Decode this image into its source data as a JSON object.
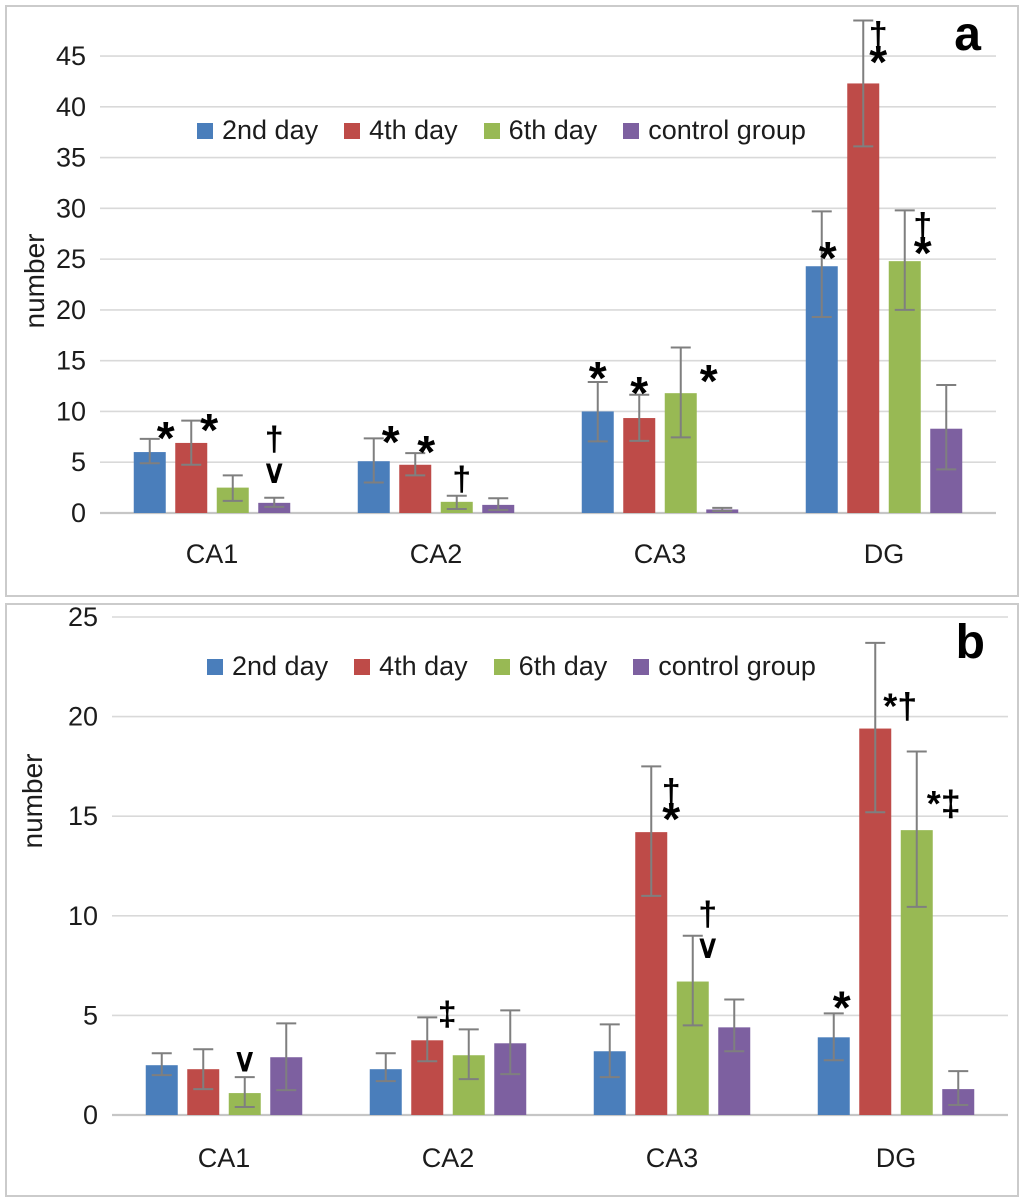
{
  "figure": {
    "background": "#ffffff",
    "border_color": "#cbcbcb",
    "gridline_color": "#d9d9d9",
    "axis_line_color": "#c6c6c6",
    "error_bar_color": "#7f7f7f",
    "text_color": "#1c1c1c"
  },
  "chart_data": [
    {
      "type": "bar",
      "panel_label": "a",
      "ylabel": "number",
      "xlabel": "",
      "categories": [
        "CA1",
        "CA2",
        "CA3",
        "DG"
      ],
      "y_ticks": [
        0,
        5,
        10,
        15,
        20,
        25,
        30,
        35,
        40,
        45
      ],
      "ylim": [
        0,
        49
      ],
      "grid": true,
      "legend_position": "top-inside",
      "series": [
        {
          "name": "2nd day",
          "color": "#4A7EBB",
          "values": [
            6.0,
            5.1,
            10.0,
            24.3
          ],
          "err_lo": [
            4.9,
            3.0,
            7.05,
            19.3
          ],
          "err_hi": [
            7.3,
            7.35,
            12.9,
            29.7
          ]
        },
        {
          "name": "4th day",
          "color": "#BE4B48",
          "values": [
            6.9,
            4.75,
            9.35,
            42.3
          ],
          "err_lo": [
            4.75,
            3.7,
            7.1,
            36.1
          ],
          "err_hi": [
            9.1,
            5.9,
            11.65,
            48.5
          ]
        },
        {
          "name": "6th day",
          "color": "#98B954",
          "values": [
            2.5,
            1.1,
            11.8,
            24.8
          ],
          "err_lo": [
            1.2,
            0.4,
            7.45,
            20.0
          ],
          "err_hi": [
            3.7,
            1.7,
            16.3,
            29.8
          ]
        },
        {
          "name": "control group",
          "color": "#7D60A0",
          "values": [
            1.0,
            0.8,
            0.35,
            8.3
          ],
          "err_lo": [
            0.6,
            0.3,
            0.2,
            4.3
          ],
          "err_hi": [
            1.5,
            1.45,
            0.5,
            12.6
          ]
        }
      ],
      "annotations": [
        {
          "group": 0,
          "bar": 0,
          "lines": [
            "*"
          ],
          "y": 7.0,
          "dx": 16
        },
        {
          "group": 0,
          "bar": 1,
          "lines": [
            "*"
          ],
          "y": 7.8,
          "dx": 18
        },
        {
          "group": 0,
          "bar": 3,
          "lines": [
            "†",
            "∨"
          ],
          "y": 3.0,
          "dx": 0
        },
        {
          "group": 1,
          "bar": 0,
          "lines": [
            "*"
          ],
          "y": 6.6,
          "dx": 17
        },
        {
          "group": 1,
          "bar": 1,
          "lines": [
            "*"
          ],
          "y": 5.6,
          "dx": 11
        },
        {
          "group": 1,
          "bar": 2,
          "lines": [
            "†"
          ],
          "y": 2.2,
          "dx": 5
        },
        {
          "group": 2,
          "bar": 0,
          "lines": [
            "*"
          ],
          "y": 12.9,
          "dx": 0
        },
        {
          "group": 2,
          "bar": 1,
          "lines": [
            "*"
          ],
          "y": 11.4,
          "dx": 0
        },
        {
          "group": 2,
          "bar": 2,
          "lines": [
            "*"
          ],
          "y": 12.6,
          "dx": 28
        },
        {
          "group": 3,
          "bar": 0,
          "lines": [
            "*"
          ],
          "y": 24.7,
          "dx": 6
        },
        {
          "group": 3,
          "bar": 1,
          "lines": [
            "†",
            "*"
          ],
          "y": 44.0,
          "dx": 15
        },
        {
          "group": 3,
          "bar": 2,
          "lines": [
            "†",
            "*"
          ],
          "y": 25.2,
          "dx": 18
        }
      ]
    },
    {
      "type": "bar",
      "panel_label": "b",
      "ylabel": "number",
      "xlabel": "",
      "categories": [
        "CA1",
        "CA2",
        "CA3",
        "DG"
      ],
      "y_ticks": [
        0,
        5,
        10,
        15,
        20,
        25
      ],
      "ylim": [
        0,
        25.6
      ],
      "grid": true,
      "legend_position": "top-inside",
      "series": [
        {
          "name": "2nd day",
          "color": "#4A7EBB",
          "values": [
            2.5,
            2.3,
            3.2,
            3.9
          ],
          "err_lo": [
            2.0,
            1.7,
            1.9,
            2.75
          ],
          "err_hi": [
            3.1,
            3.1,
            4.55,
            5.1
          ]
        },
        {
          "name": "4th day",
          "color": "#BE4B48",
          "values": [
            2.3,
            3.75,
            14.2,
            19.4
          ],
          "err_lo": [
            1.3,
            2.7,
            11.0,
            15.2
          ],
          "err_hi": [
            3.3,
            4.9,
            17.5,
            23.7
          ]
        },
        {
          "name": "6th day",
          "color": "#98B954",
          "values": [
            1.1,
            3.0,
            6.7,
            14.3
          ],
          "err_lo": [
            0.4,
            1.8,
            4.5,
            10.45
          ],
          "err_hi": [
            1.9,
            4.3,
            9.0,
            18.25
          ]
        },
        {
          "name": "control group",
          "color": "#7D60A0",
          "values": [
            2.9,
            3.6,
            4.4,
            1.3
          ],
          "err_lo": [
            1.25,
            2.05,
            3.2,
            0.5
          ],
          "err_hi": [
            4.6,
            5.25,
            5.8,
            2.2
          ]
        }
      ],
      "annotations": [
        {
          "group": 0,
          "bar": 2,
          "lines": [
            "∨"
          ],
          "y": 2.2,
          "dx": 0
        },
        {
          "group": 1,
          "bar": 1,
          "lines": [
            "‡"
          ],
          "y": 4.5,
          "dx": 20
        },
        {
          "group": 2,
          "bar": 1,
          "lines": [
            "†",
            "*"
          ],
          "y": 14.65,
          "dx": 20
        },
        {
          "group": 2,
          "bar": 2,
          "lines": [
            "†",
            "∨"
          ],
          "y": 7.9,
          "dx": 15
        },
        {
          "group": 3,
          "bar": 0,
          "lines": [
            "*"
          ],
          "y": 5.2,
          "dx": 8
        },
        {
          "group": 3,
          "bar": 1,
          "lines": [
            "*†"
          ],
          "y": 19.9,
          "dx": 25
        },
        {
          "group": 3,
          "bar": 2,
          "lines": [
            "*‡"
          ],
          "y": 15.0,
          "dx": 27
        }
      ]
    }
  ]
}
